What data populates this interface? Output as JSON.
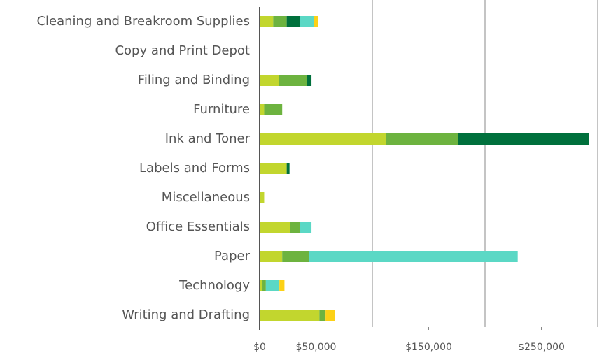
{
  "chart_data": {
    "type": "stacked-bar-horizontal",
    "categories": [
      "Cleaning and Breakroom Supplies",
      "Copy and Print Depot",
      "Filing and Binding",
      "Furniture",
      "Ink and Toner",
      "Labels and Forms",
      "Miscellaneous",
      "Office Essentials",
      "Paper",
      "Technology",
      "Writing and Drafting"
    ],
    "series": [
      {
        "color": "#c2d62e",
        "values": [
          12000,
          0,
          17000,
          4000,
          112000,
          24000,
          4000,
          27000,
          20000,
          2500,
          53000
        ]
      },
      {
        "color": "#6db33f",
        "values": [
          12000,
          0,
          25000,
          16000,
          64000,
          0,
          0,
          9000,
          24000,
          3000,
          5500
        ]
      },
      {
        "color": "#00703c",
        "values": [
          12000,
          0,
          4000,
          0,
          116000,
          2500,
          0,
          0,
          0,
          0,
          0
        ]
      },
      {
        "color": "#5bd8c5",
        "values": [
          12000,
          0,
          0,
          0,
          0,
          0,
          0,
          10000,
          185000,
          12000,
          0
        ]
      },
      {
        "color": "#fcd116",
        "values": [
          4000,
          0,
          0,
          0,
          0,
          0,
          0,
          0,
          0,
          4500,
          8000
        ]
      }
    ],
    "xlim": [
      0,
      300000
    ],
    "xticks": [
      {
        "value": 0,
        "label": "$0"
      },
      {
        "value": 50000,
        "label": "$50,000"
      },
      {
        "value": 150000,
        "label": "$150,000"
      },
      {
        "value": 250000,
        "label": "$250,000"
      }
    ],
    "xgrid": [
      100000,
      200000,
      300000
    ]
  }
}
